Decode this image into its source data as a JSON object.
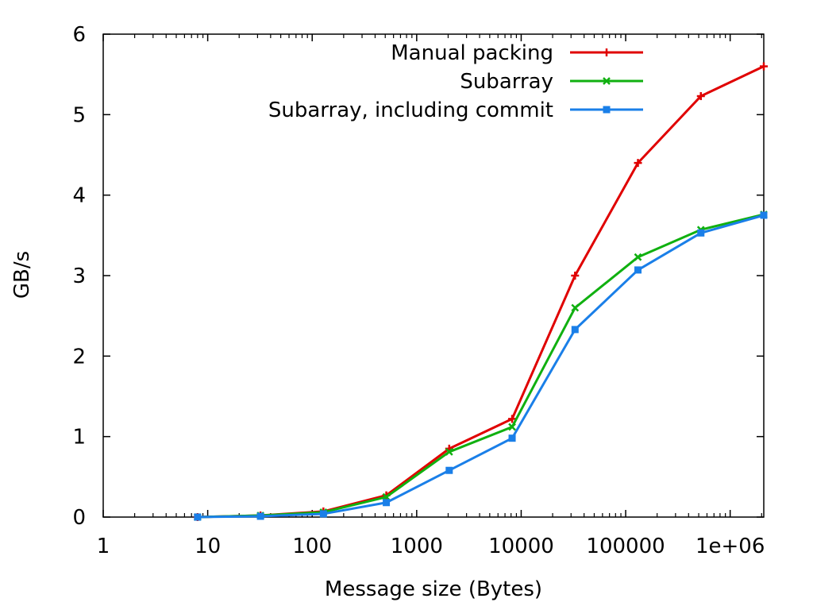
{
  "chart_data": {
    "type": "line",
    "xlabel": "Message size (Bytes)",
    "ylabel": "GB/s",
    "xscale": "log",
    "xlim": [
      1,
      2097152
    ],
    "ylim": [
      0,
      6
    ],
    "xticks": [
      1,
      10,
      100,
      1000,
      10000,
      100000,
      1000000
    ],
    "xtick_labels": [
      "1",
      "10",
      "100",
      "1000",
      "10000",
      "100000",
      "1e+06"
    ],
    "yticks": [
      0,
      1,
      2,
      3,
      4,
      5,
      6
    ],
    "ytick_labels": [
      "0",
      "1",
      "2",
      "3",
      "4",
      "5",
      "6"
    ],
    "legend_position": "top-right",
    "x": [
      8,
      32,
      128,
      512,
      2048,
      8192,
      32768,
      131072,
      524288,
      2097152
    ],
    "series": [
      {
        "name": "Manual packing",
        "color": "#e00000",
        "marker": "plus",
        "values": [
          0.0,
          0.02,
          0.07,
          0.27,
          0.85,
          1.22,
          3.0,
          4.4,
          5.23,
          5.6
        ]
      },
      {
        "name": "Subarray",
        "color": "#10b010",
        "marker": "cross",
        "values": [
          0.0,
          0.02,
          0.06,
          0.25,
          0.81,
          1.12,
          2.6,
          3.23,
          3.57,
          3.76
        ]
      },
      {
        "name": "Subarray, including commit",
        "color": "#1a7fe8",
        "marker": "square",
        "values": [
          0.0,
          0.01,
          0.04,
          0.18,
          0.58,
          0.98,
          2.33,
          3.07,
          3.53,
          3.75
        ]
      }
    ]
  }
}
